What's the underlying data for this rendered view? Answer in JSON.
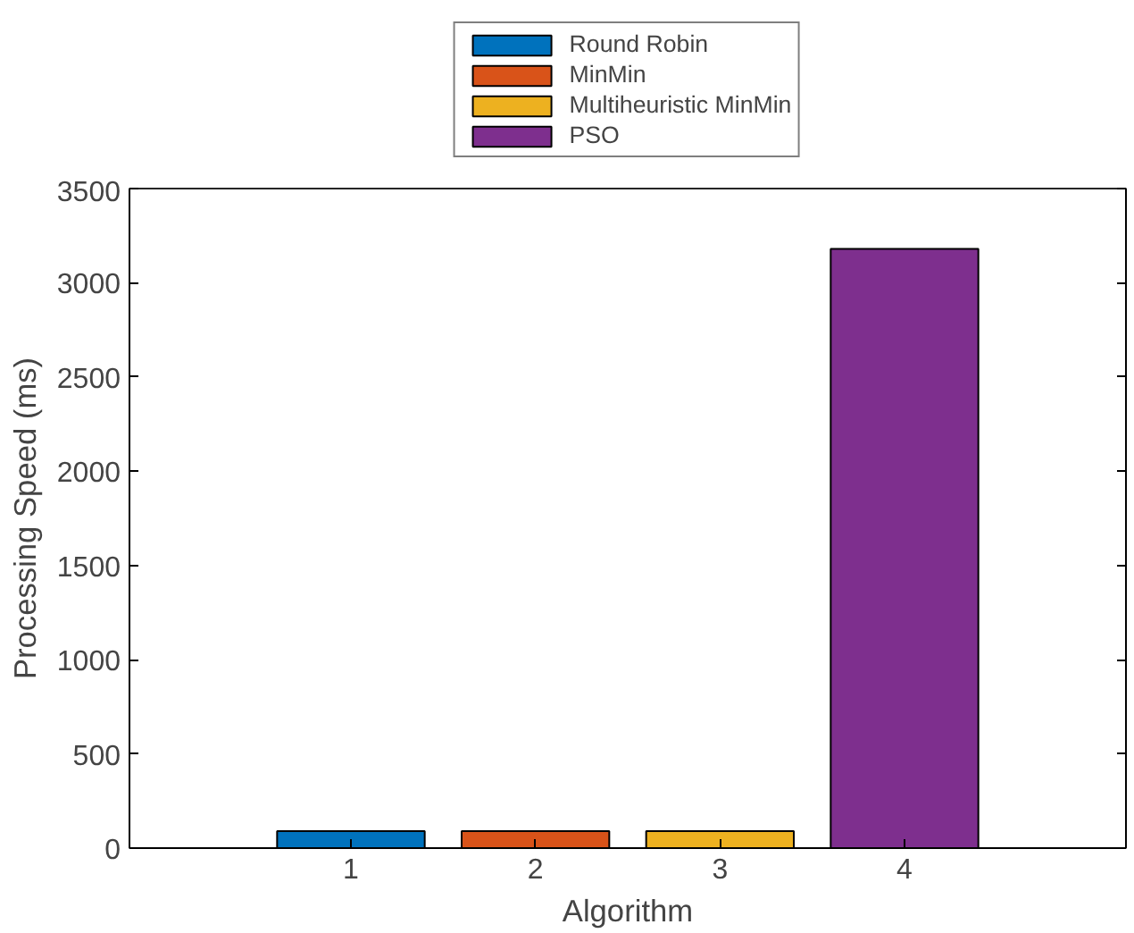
{
  "chart_data": {
    "type": "bar",
    "xlabel": "Algorithm",
    "ylabel": "Processing Speed (ms)",
    "xlim": [
      -0.2,
      5.2
    ],
    "xticks": [
      1,
      2,
      3,
      4
    ],
    "ylim": [
      0,
      3500
    ],
    "yticks": [
      0,
      500,
      1000,
      1500,
      2000,
      2500,
      3000,
      3500
    ],
    "grid": false,
    "legend": "top",
    "series": [
      {
        "name": "Round Robin",
        "color": "#0072bd",
        "x": [
          1
        ],
        "values": [
          90
        ]
      },
      {
        "name": "MinMin",
        "color": "#d95319",
        "x": [
          2
        ],
        "values": [
          90
        ]
      },
      {
        "name": "Multiheuristic MinMin",
        "color": "#edb120",
        "x": [
          3
        ],
        "values": [
          90
        ]
      },
      {
        "name": "PSO",
        "color": "#7e2f8e",
        "x": [
          4
        ],
        "values": [
          3180
        ]
      }
    ]
  }
}
